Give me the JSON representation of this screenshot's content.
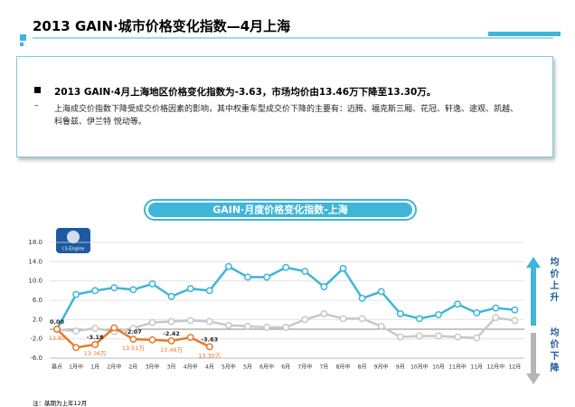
{
  "header": {
    "title": "2013 GAIN·城市价格变化指数—4月上海"
  },
  "summary": {
    "headline": "2013 GAIN·4月上海地区价格变化指数为-3.63，市场均价由13.46万下降至13.30万。",
    "detail": "上海成交价指数下降受成交价格因素的影响，其中权重车型成交价下降的主要有：迈腾、福克斯三厢、花冠、轩逸、途观、凯越、科鲁兹、伊兰特 悦动等。"
  },
  "logo": "I.S.Engine",
  "side_labels": {
    "up": "均价上升",
    "down": "均价下降"
  },
  "note": "注：基期为上年12月",
  "chart_data": {
    "type": "line",
    "title": "GAIN·月度价格变化指数-上海",
    "categories": [
      "基点",
      "1月中",
      "1月",
      "2月中",
      "2月",
      "3月中",
      "3月",
      "4月中",
      "4月",
      "5月中",
      "5月",
      "6月中",
      "6月",
      "7月中",
      "7月",
      "8月中",
      "8月",
      "9月中",
      "9月",
      "10月中",
      "10月",
      "11月中",
      "11月",
      "12月中",
      "12月"
    ],
    "series": [
      {
        "color": "#3fb5d8",
        "values": [
          0,
          7.2,
          8.0,
          8.6,
          8.2,
          9.4,
          6.8,
          8.4,
          8.0,
          13.0,
          10.8,
          10.8,
          12.8,
          12.0,
          8.8,
          12.6,
          6.4,
          7.8,
          3.2,
          2.2,
          3.0,
          5.2,
          3.4,
          4.4,
          4.0
        ]
      },
      {
        "color": "#c8c8c8",
        "values": [
          0,
          -0.4,
          0.2,
          -0.5,
          0.2,
          1.4,
          1.6,
          1.8,
          1.6,
          0.8,
          0.6,
          0.4,
          0.4,
          2.0,
          3.2,
          2.2,
          2.2,
          0.6,
          -1.6,
          -1.4,
          -1.4,
          -1.6,
          -1.8,
          2.4,
          1.8
        ]
      },
      {
        "color": "#e8782a",
        "values": [
          0,
          -3.8,
          -3.18,
          0.3,
          -2.07,
          -2.2,
          -2.42,
          -1.7,
          -3.63,
          null,
          null,
          null,
          null,
          null,
          null,
          null,
          null,
          null,
          null,
          null,
          null,
          null,
          null,
          null,
          null
        ],
        "value_labels": [
          "0.00",
          null,
          "-3.18",
          null,
          "-2.07",
          null,
          "-2.42",
          null,
          "-3.63",
          null,
          null,
          null,
          null,
          null,
          null,
          null,
          null,
          null,
          null,
          null,
          null,
          null,
          null,
          null,
          null
        ]
      }
    ],
    "annotations": [
      {
        "category": "基点",
        "text": "13.80"
      },
      {
        "category": "1月",
        "text": "13.36万"
      },
      {
        "category": "2月",
        "text": "13.51万"
      },
      {
        "category": "3月",
        "text": "13.46万"
      },
      {
        "category": "4月",
        "text": "13.30万"
      }
    ],
    "ylim": [
      -6,
      18
    ],
    "yticks": [
      {
        "value": -6,
        "label": "-6.0"
      },
      {
        "value": -2,
        "label": "-2.0"
      },
      {
        "value": 2,
        "label": "2.0"
      },
      {
        "value": 6,
        "label": "6.0"
      },
      {
        "value": 10,
        "label": "10.0"
      },
      {
        "value": 14,
        "label": "14.0"
      },
      {
        "value": 18,
        "label": "18.0"
      }
    ],
    "grid": true
  }
}
